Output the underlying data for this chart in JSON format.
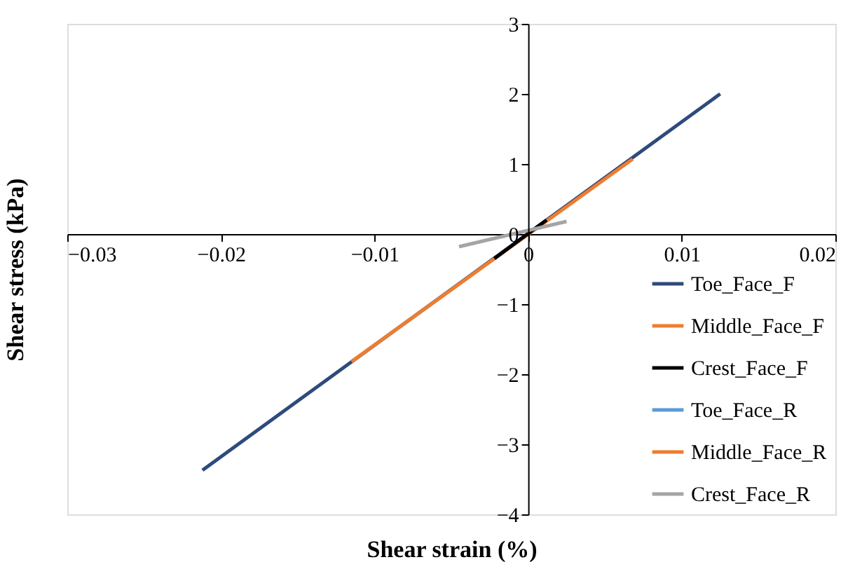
{
  "chart_data": {
    "type": "line",
    "xlabel": "Shear strain (%)",
    "ylabel": "Shear stress (kPa)",
    "xlim": [
      -0.03,
      0.02
    ],
    "xticks": [
      -0.03,
      -0.02,
      -0.01,
      0,
      0.01,
      0.02
    ],
    "ylim": [
      -4,
      3
    ],
    "yticks": [
      -4,
      -3,
      -2,
      -1,
      0,
      1,
      2,
      3
    ],
    "grid": false,
    "legend": "bottom right",
    "marker": "none",
    "line_style": "solid",
    "series": [
      {
        "name": "Toe_Face_F",
        "color": "#2e4a7d",
        "x": [
          -0.0212,
          0.0125
        ],
        "values": [
          -3.37,
          2.0
        ]
      },
      {
        "name": "Middle_Face_F",
        "color": "#ed7d31",
        "x": [
          -0.0115,
          0.0068
        ],
        "values": [
          -1.82,
          1.07
        ]
      },
      {
        "name": "Crest_Face_F",
        "color": "#000000",
        "x": [
          -0.0022,
          0.0012
        ],
        "values": [
          -0.35,
          0.2
        ]
      },
      {
        "name": "Toe_Face_R",
        "color": "#5b9bd5"
      },
      {
        "name": "Middle_Face_R",
        "color": "#ed7d31"
      },
      {
        "name": "Crest_Face_R",
        "color": "#a5a5a5",
        "x": [
          -0.0045,
          0.0025
        ],
        "values": [
          -0.18,
          0.18
        ]
      }
    ]
  }
}
